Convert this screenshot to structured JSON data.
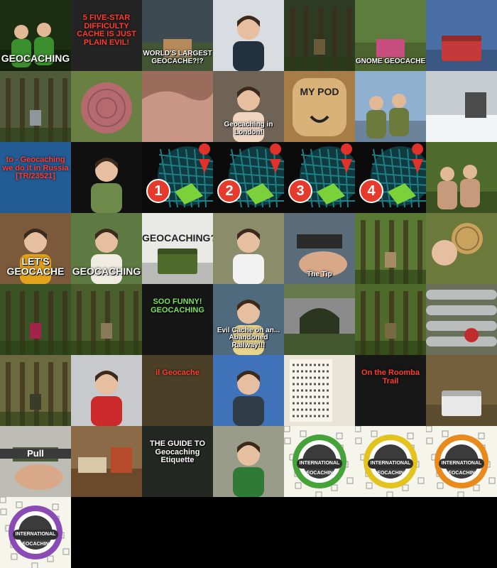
{
  "tiles": [
    {
      "caption": "GEOCACHING",
      "bg": "#1b2e12",
      "accent": "#3c8f2e",
      "scene": "people"
    },
    {
      "caption": "5 FIVE-STAR DIFFICULTY CACHE IS JUST PLAIN EVIL!",
      "bg": "#2b2b2b",
      "accent": "#e02c23",
      "scene": "text"
    },
    {
      "caption": "WORLD'S LARGEST GEOCACHE?!?",
      "bg": "#3d4a52",
      "accent": "#b48a5a",
      "scene": "outdoor"
    },
    {
      "caption": "",
      "bg": "#d9dde2",
      "accent": "#22313f",
      "scene": "person"
    },
    {
      "caption": "",
      "bg": "#2d3b22",
      "accent": "#6b5a3a",
      "scene": "forest"
    },
    {
      "caption": "GNOME GEOCACHE",
      "bg": "#5c7d3d",
      "accent": "#c74e7e",
      "scene": "outdoor"
    },
    {
      "caption": "",
      "bg": "#4a6fa5",
      "accent": "#c43a3a",
      "scene": "box"
    },
    {
      "caption": "",
      "bg": "#4f5b3b",
      "accent": "#8e979c",
      "scene": "forest"
    },
    {
      "caption": "",
      "bg": "#6a8042",
      "accent": "#b56b6d",
      "scene": "round"
    },
    {
      "caption": "",
      "bg": "#9b6b5c",
      "accent": "#c99584",
      "scene": "rock"
    },
    {
      "caption": "Geocaching in London!",
      "bg": "#6f6355",
      "accent": "#f0d6c0",
      "scene": "person"
    },
    {
      "caption": "MY POD",
      "bg": "#a77c47",
      "accent": "#d9b27a",
      "scene": "pod"
    },
    {
      "caption": "",
      "bg": "#8fb0cf",
      "accent": "#6c7a3b",
      "scene": "people"
    },
    {
      "caption": "",
      "bg": "#c7ccd1",
      "accent": "#4b4b4b",
      "scene": "snow"
    },
    {
      "caption": "to - Geocaching we do it in Russia [TR/23521]",
      "bg": "#2a6bb0",
      "accent": "#e2261f",
      "scene": "text"
    },
    {
      "caption": "",
      "bg": "#101010",
      "accent": "#6e8a4a",
      "scene": "person"
    },
    {
      "caption": "1",
      "bg": "#0b0b0b",
      "accent": "#1d7f86",
      "scene": "map"
    },
    {
      "caption": "2",
      "bg": "#0b0b0b",
      "accent": "#1d7f86",
      "scene": "map"
    },
    {
      "caption": "3",
      "bg": "#0b0b0b",
      "accent": "#1d7f86",
      "scene": "map"
    },
    {
      "caption": "4",
      "bg": "#0b0b0b",
      "accent": "#1d7f86",
      "scene": "map"
    },
    {
      "caption": "",
      "bg": "#4e6b2b",
      "accent": "#c79a7c",
      "scene": "people"
    },
    {
      "caption": "LET'S GEOCACHE",
      "bg": "#7a5a3a",
      "accent": "#e4a21c",
      "scene": "person"
    },
    {
      "caption": "GEOCACHING",
      "bg": "#5d7a43",
      "accent": "#f1ece2",
      "scene": "person"
    },
    {
      "caption": "GEOCACHING?",
      "bg": "#e9e9e6",
      "accent": "#4f6b2b",
      "scene": "box"
    },
    {
      "caption": "",
      "bg": "#8a8c6a",
      "accent": "#f2f2f2",
      "scene": "person"
    },
    {
      "caption": "The Tip",
      "bg": "#5a6c7a",
      "accent": "#2b2b2b",
      "scene": "hands"
    },
    {
      "caption": "",
      "bg": "#5a7a33",
      "accent": "#a58b64",
      "scene": "forest"
    },
    {
      "caption": "",
      "bg": "#6b7a3b",
      "accent": "#c9a35d",
      "scene": "coin"
    },
    {
      "caption": "",
      "bg": "#3a5324",
      "accent": "#a3244a",
      "scene": "forest"
    },
    {
      "caption": "",
      "bg": "#4a5e2c",
      "accent": "#8a7a5a",
      "scene": "forest"
    },
    {
      "caption": "SOO FUNNY! GEOCACHING",
      "bg": "#1a1a1a",
      "accent": "#2cae4a",
      "scene": "text"
    },
    {
      "caption": "Evil Cache on an... Abandoned Railway!!!",
      "bg": "#506a7d",
      "accent": "#e8d48a",
      "scene": "person"
    },
    {
      "caption": "",
      "bg": "#667a4d",
      "accent": "#8b8b8b",
      "scene": "bridge"
    },
    {
      "caption": "",
      "bg": "#4d6a2a",
      "accent": "#7a6a44",
      "scene": "forest"
    },
    {
      "caption": "",
      "bg": "#6a6f5a",
      "accent": "#c02c2c",
      "scene": "pipes"
    },
    {
      "caption": "",
      "bg": "#6b6a3e",
      "accent": "#3b3b2a",
      "scene": "forest"
    },
    {
      "caption": "",
      "bg": "#c7c9cc",
      "accent": "#cc2a2a",
      "scene": "person"
    },
    {
      "caption": "il Geocache",
      "bg": "#5a4a2e",
      "accent": "#ff3b2f",
      "scene": "text"
    },
    {
      "caption": "",
      "bg": "#3f72b8",
      "accent": "#2e3d48",
      "scene": "person"
    },
    {
      "caption": "",
      "bg": "#e9e4d6",
      "accent": "#3b3b3b",
      "scene": "letters"
    },
    {
      "caption": "On the Roomba Trail",
      "bg": "#1c1c1c",
      "accent": "#ff3b2f",
      "scene": "text"
    },
    {
      "caption": "",
      "bg": "#74603c",
      "accent": "#e8e8e8",
      "scene": "box"
    },
    {
      "caption": "Pull",
      "bg": "#bdbdb6",
      "accent": "#4a5a3a",
      "scene": "hands"
    },
    {
      "caption": "",
      "bg": "#8b6b47",
      "accent": "#d8c7a8",
      "scene": "table"
    },
    {
      "caption": "THE GUIDE TO Geocaching Etiquette",
      "bg": "#2a2f2a",
      "accent": "#9be36a",
      "scene": "text"
    },
    {
      "caption": "",
      "bg": "#9a9c8a",
      "accent": "#2f7a34",
      "scene": "person"
    },
    {
      "caption": "INTERNATIONAL GEOCACHING",
      "bg": "#f5f5ec",
      "accent": "#46a33a",
      "scene": "logo"
    },
    {
      "caption": "INTERNATIONAL GEOCACHING",
      "bg": "#f5f5ec",
      "accent": "#e3c41e",
      "scene": "logo"
    },
    {
      "caption": "INTERNATIONAL GEOCACHING",
      "bg": "#f5f5ec",
      "accent": "#e88a1c",
      "scene": "logo"
    },
    {
      "caption": "INTERNATIONAL GEOCACHING",
      "bg": "#f5f5ec",
      "accent": "#8b4bb5",
      "scene": "logo"
    }
  ]
}
